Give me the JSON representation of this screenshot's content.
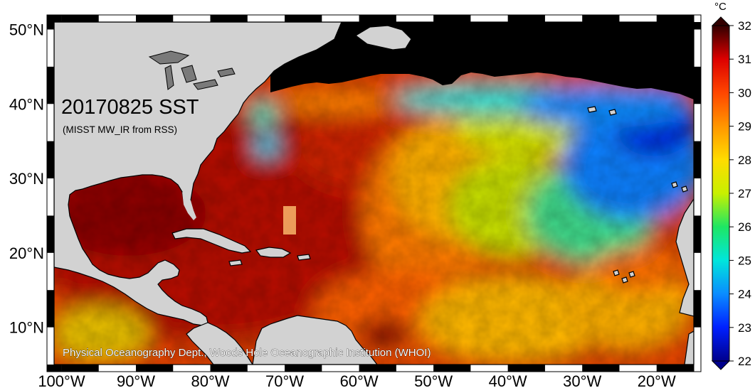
{
  "map": {
    "title": "20170825 SST",
    "subtitle": "(MISST MW_IR from RSS)",
    "credit": "Physical Oceanography Dept., Woods Hole Oceanographic Institution (WHOI)",
    "lat_labels": [
      "50°N",
      "40°N",
      "30°N",
      "20°N",
      "10°N"
    ],
    "lon_labels": [
      "100°W",
      "90°W",
      "80°W",
      "70°W",
      "60°W",
      "50°W",
      "40°W",
      "30°W",
      "20°W"
    ],
    "extent": {
      "lon_min": -101,
      "lon_max": -15,
      "lat_min": 5,
      "lat_max": 51
    }
  },
  "colorbar": {
    "unit": "°C",
    "tick_labels": [
      "22",
      "23",
      "24",
      "25",
      "26",
      "27",
      "28",
      "29",
      "30",
      "31",
      "32"
    ],
    "min": 22,
    "max": 32,
    "colors": [
      "#00008c",
      "#0020ff",
      "#0a8cff",
      "#00e6dc",
      "#1ee664",
      "#c8f000",
      "#ffdc00",
      "#ff9600",
      "#ff4600",
      "#dc0000",
      "#8c0000",
      "#320000"
    ]
  },
  "colors": {
    "land": "#d2d2d2",
    "no_data": "#000000",
    "frame_dark": "#000000",
    "frame_light": "#ffffff"
  }
}
